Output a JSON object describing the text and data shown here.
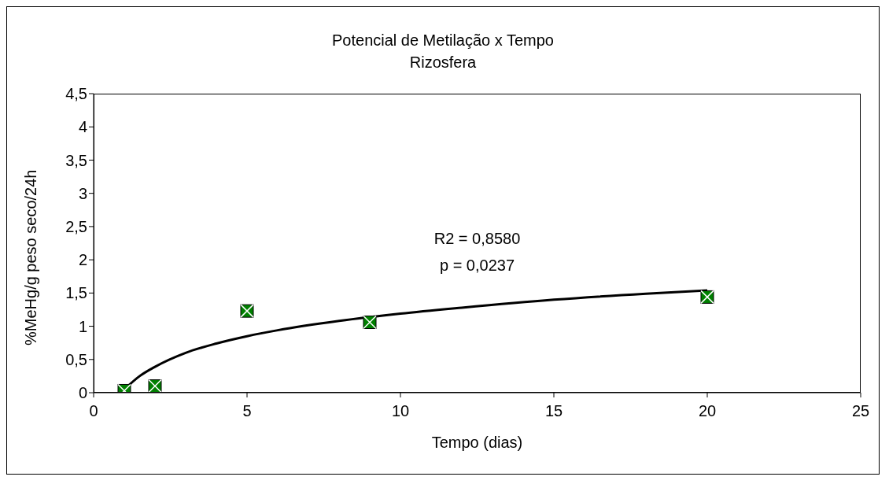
{
  "chart_data": {
    "type": "scatter",
    "title": "Potencial de Metilação x Tempo",
    "subtitle": "Rizosfera",
    "xlabel": "Tempo (dias)",
    "ylabel": "%MeHg/g peso seco/24h",
    "annotations": [
      "R2 = 0,8580",
      "p = 0,0237"
    ],
    "series": [
      {
        "color": "#008000",
        "marker": "square",
        "x": [
          1,
          2,
          5,
          9,
          20
        ],
        "values": [
          0.03,
          0.1,
          1.23,
          1.06,
          1.44
        ]
      },
      {
        "type": "line",
        "color": "#000000",
        "marker": "none",
        "line_style": "solid",
        "x": [
          1,
          1.5,
          2,
          3,
          4,
          5,
          6,
          8,
          10,
          12,
          15,
          18,
          20
        ],
        "values": [
          0.05,
          0.25,
          0.39,
          0.6,
          0.74,
          0.85,
          0.94,
          1.08,
          1.19,
          1.28,
          1.4,
          1.49,
          1.54
        ]
      }
    ],
    "xlim": [
      0,
      25
    ],
    "xticks": [
      0,
      5,
      10,
      15,
      20,
      25
    ],
    "ylim": [
      0,
      4.5
    ],
    "yticks": [
      0,
      {
        "value": 0.5,
        "label": "0,5"
      },
      1,
      {
        "value": 1.5,
        "label": "1,5"
      },
      2,
      {
        "value": 2.5,
        "label": "2,5"
      },
      3,
      {
        "value": 3.5,
        "label": "3,5"
      },
      4,
      {
        "value": 4.5,
        "label": "4,5"
      }
    ],
    "grid": false,
    "legend": false
  }
}
